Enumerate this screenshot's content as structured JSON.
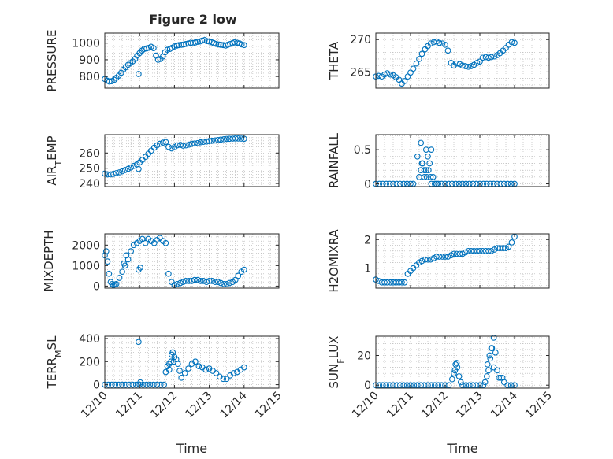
{
  "figure": {
    "title": "Figure 2 low",
    "colors": {
      "marker": "#0072BD",
      "axis": "#262626",
      "grid": "#b0b0b0",
      "background": "#ffffff"
    }
  },
  "chart_data": [
    {
      "id": "pressure",
      "type": "scatter",
      "ylabel": "PRESSURE",
      "xlabel": "",
      "xlim": [
        0,
        5
      ],
      "ylim": [
        730,
        1060
      ],
      "yticks": [
        800,
        900,
        1000
      ],
      "ytick_labels": [
        "800",
        "900",
        "1000"
      ],
      "xticks": [
        0,
        1,
        2,
        3,
        4,
        5
      ],
      "xtick_labels": [
        "12/10",
        "12/11",
        "12/12",
        "12/13",
        "12/14",
        "12/15"
      ],
      "x": [
        0.0,
        0.07,
        0.13,
        0.2,
        0.27,
        0.33,
        0.4,
        0.47,
        0.53,
        0.6,
        0.67,
        0.73,
        0.8,
        0.87,
        0.93,
        1.0,
        1.07,
        1.13,
        1.2,
        1.27,
        1.33,
        1.4,
        1.47,
        1.53,
        1.6,
        1.67,
        1.73,
        1.8,
        1.87,
        1.93,
        2.0,
        2.07,
        2.13,
        2.2,
        2.27,
        2.33,
        2.4,
        2.47,
        2.53,
        2.6,
        2.67,
        2.73,
        2.8,
        2.87,
        2.93,
        3.0,
        3.07,
        3.13,
        3.2,
        3.27,
        3.33,
        3.4,
        3.47,
        3.53,
        3.6,
        3.67,
        3.73,
        3.8,
        3.87,
        3.93,
        4.0,
        0.97
      ],
      "y": [
        785,
        775,
        770,
        772,
        780,
        792,
        805,
        822,
        840,
        855,
        870,
        880,
        890,
        905,
        925,
        940,
        955,
        965,
        968,
        972,
        978,
        970,
        925,
        900,
        905,
        920,
        945,
        960,
        965,
        972,
        980,
        985,
        988,
        990,
        992,
        995,
        998,
        1002,
        1000,
        1004,
        1008,
        1010,
        1015,
        1018,
        1012,
        1010,
        1005,
        1000,
        995,
        992,
        990,
        988,
        985,
        990,
        995,
        1000,
        1005,
        1002,
        998,
        992,
        988,
        815
      ]
    },
    {
      "id": "theta",
      "type": "scatter",
      "ylabel": "THETA",
      "xlabel": "",
      "xlim": [
        0,
        5
      ],
      "ylim": [
        262.5,
        271
      ],
      "yticks": [
        265,
        270
      ],
      "ytick_labels": [
        "265",
        "270"
      ],
      "xticks": [
        0,
        1,
        2,
        3,
        4,
        5
      ],
      "xtick_labels": [
        "12/10",
        "12/11",
        "12/12",
        "12/13",
        "12/14",
        "12/15"
      ],
      "x": [
        0.0,
        0.08,
        0.17,
        0.25,
        0.33,
        0.42,
        0.5,
        0.58,
        0.67,
        0.75,
        0.83,
        0.92,
        1.0,
        1.08,
        1.17,
        1.25,
        1.33,
        1.42,
        1.5,
        1.58,
        1.67,
        1.75,
        1.83,
        1.92,
        2.0,
        2.08,
        2.17,
        2.25,
        2.33,
        2.42,
        2.5,
        2.58,
        2.67,
        2.75,
        2.83,
        2.92,
        3.0,
        3.08,
        3.17,
        3.25,
        3.33,
        3.42,
        3.5,
        3.58,
        3.67,
        3.75,
        3.83,
        3.92,
        4.0
      ],
      "y": [
        264.3,
        264.4,
        264.3,
        264.6,
        264.8,
        264.6,
        264.5,
        264.2,
        263.8,
        263.2,
        263.6,
        264.3,
        264.9,
        265.5,
        266.3,
        267.0,
        267.8,
        268.5,
        269.0,
        269.4,
        269.6,
        269.7,
        269.5,
        269.4,
        269.2,
        268.3,
        266.4,
        266.0,
        266.3,
        266.2,
        266.0,
        265.9,
        265.8,
        265.9,
        266.1,
        266.4,
        266.6,
        267.2,
        267.3,
        267.2,
        267.3,
        267.4,
        267.6,
        267.9,
        268.3,
        268.7,
        269.2,
        269.6,
        269.5
      ]
    },
    {
      "id": "air_temp",
      "type": "scatter",
      "ylabel": "AIR_TEMP",
      "xlabel": "",
      "xlim": [
        0,
        5
      ],
      "ylim": [
        238,
        272
      ],
      "yticks": [
        240,
        250,
        260
      ],
      "ytick_labels": [
        "240",
        "250",
        "260"
      ],
      "xticks": [
        0,
        1,
        2,
        3,
        4,
        5
      ],
      "xtick_labels": [
        "12/10",
        "12/11",
        "12/12",
        "12/13",
        "12/14",
        "12/15"
      ],
      "x": [
        0.0,
        0.08,
        0.17,
        0.25,
        0.33,
        0.42,
        0.5,
        0.58,
        0.67,
        0.75,
        0.83,
        0.92,
        1.0,
        1.08,
        1.17,
        1.25,
        1.33,
        1.42,
        1.5,
        1.58,
        1.67,
        1.75,
        1.83,
        1.92,
        2.0,
        2.08,
        2.17,
        2.25,
        2.33,
        2.42,
        2.5,
        2.58,
        2.67,
        2.75,
        2.83,
        2.92,
        3.0,
        3.08,
        3.17,
        3.25,
        3.33,
        3.42,
        3.5,
        3.58,
        3.67,
        3.75,
        3.83,
        3.92,
        4.0,
        0.97
      ],
      "y": [
        246.5,
        246.0,
        246.0,
        246.3,
        246.8,
        247.3,
        248.0,
        248.8,
        249.6,
        250.5,
        251.5,
        252.5,
        253.8,
        255.5,
        257.5,
        259.5,
        261.5,
        263.5,
        265.0,
        266.0,
        266.8,
        267.2,
        264.0,
        263.0,
        263.8,
        265.0,
        265.3,
        264.8,
        265.0,
        265.5,
        266.0,
        266.2,
        266.5,
        267.0,
        267.3,
        267.5,
        267.8,
        268.0,
        268.2,
        268.5,
        268.7,
        269.0,
        269.2,
        269.3,
        269.4,
        269.5,
        269.5,
        269.4,
        269.3,
        249.5
      ]
    },
    {
      "id": "rainfall",
      "type": "scatter",
      "ylabel": "RAINFALL",
      "xlabel": "",
      "xlim": [
        0,
        5
      ],
      "ylim": [
        -0.04,
        0.72
      ],
      "yticks": [
        0,
        0.5
      ],
      "ytick_labels": [
        "0",
        "0.5"
      ],
      "xticks": [
        0,
        1,
        2,
        3,
        4,
        5
      ],
      "xtick_labels": [
        "12/10",
        "12/11",
        "12/12",
        "12/13",
        "12/14",
        "12/15"
      ],
      "x": [
        0.0,
        0.1,
        0.2,
        0.3,
        0.4,
        0.5,
        0.6,
        0.7,
        0.8,
        0.9,
        1.0,
        1.08,
        1.2,
        1.25,
        1.3,
        1.35,
        1.4,
        1.45,
        1.5,
        1.55,
        1.6,
        1.65,
        1.7,
        1.75,
        1.8,
        1.9,
        2.0,
        2.1,
        2.2,
        2.3,
        2.4,
        2.5,
        2.6,
        2.7,
        2.8,
        2.9,
        3.0,
        3.1,
        3.2,
        3.3,
        3.4,
        3.5,
        3.6,
        3.7,
        3.8,
        3.9,
        4.0,
        1.3,
        1.33,
        1.4,
        1.45,
        1.47,
        1.52,
        1.58,
        1.6
      ],
      "y": [
        0,
        0,
        0,
        0,
        0,
        0,
        0,
        0,
        0,
        0,
        0,
        0,
        0.4,
        0.1,
        0.6,
        0.3,
        0.2,
        0.5,
        0.4,
        0.3,
        0.5,
        0.1,
        0,
        0,
        0,
        0,
        0,
        0,
        0,
        0,
        0,
        0,
        0,
        0,
        0,
        0,
        0,
        0,
        0,
        0,
        0,
        0,
        0,
        0,
        0,
        0,
        0,
        0.2,
        0.3,
        0.1,
        0.2,
        0.1,
        0.2,
        0.1,
        0
      ]
    },
    {
      "id": "mixdepth",
      "type": "scatter",
      "ylabel": "MIXDEPTH",
      "xlabel": "",
      "xlim": [
        0,
        5
      ],
      "ylim": [
        -100,
        2550
      ],
      "yticks": [
        0,
        1000,
        2000
      ],
      "ytick_labels": [
        "0",
        "1000",
        "2000"
      ],
      "xticks": [
        0,
        1,
        2,
        3,
        4,
        5
      ],
      "xtick_labels": [
        "12/10",
        "12/11",
        "12/12",
        "12/13",
        "12/14",
        "12/15"
      ],
      "x": [
        0.0,
        0.04,
        0.08,
        0.12,
        0.17,
        0.21,
        0.25,
        0.29,
        0.33,
        0.42,
        0.5,
        0.58,
        0.67,
        0.75,
        0.83,
        0.92,
        1.0,
        1.08,
        1.17,
        1.25,
        1.33,
        1.42,
        1.5,
        1.58,
        1.67,
        1.75,
        1.83,
        1.92,
        2.0,
        2.08,
        2.17,
        2.25,
        2.33,
        2.42,
        2.5,
        2.58,
        2.67,
        2.75,
        2.83,
        2.92,
        3.0,
        3.08,
        3.17,
        3.25,
        3.33,
        3.42,
        3.5,
        3.58,
        3.67,
        3.75,
        3.83,
        3.92,
        4.0,
        0.97,
        1.02,
        0.55,
        0.62
      ],
      "y": [
        1500,
        1700,
        1200,
        600,
        200,
        100,
        50,
        80,
        100,
        400,
        700,
        1000,
        1300,
        1700,
        2000,
        2100,
        2200,
        2300,
        2100,
        2300,
        2200,
        2100,
        2250,
        2350,
        2200,
        2100,
        600,
        200,
        50,
        100,
        150,
        200,
        250,
        250,
        250,
        300,
        300,
        250,
        250,
        200,
        250,
        250,
        200,
        200,
        150,
        100,
        100,
        150,
        200,
        300,
        500,
        700,
        800,
        800,
        900,
        1100,
        1500
      ]
    },
    {
      "id": "h2omixra",
      "type": "scatter",
      "ylabel": "H2OMIXRA",
      "xlabel": "",
      "xlim": [
        0,
        5
      ],
      "ylim": [
        0.3,
        2.2
      ],
      "yticks": [
        1,
        2
      ],
      "ytick_labels": [
        "1",
        "2"
      ],
      "xticks": [
        0,
        1,
        2,
        3,
        4,
        5
      ],
      "xtick_labels": [
        "12/10",
        "12/11",
        "12/12",
        "12/13",
        "12/14",
        "12/15"
      ],
      "x": [
        0.0,
        0.08,
        0.17,
        0.25,
        0.33,
        0.42,
        0.5,
        0.58,
        0.67,
        0.75,
        0.83,
        0.92,
        1.0,
        1.08,
        1.17,
        1.25,
        1.33,
        1.42,
        1.5,
        1.58,
        1.67,
        1.75,
        1.83,
        1.92,
        2.0,
        2.08,
        2.17,
        2.25,
        2.33,
        2.42,
        2.5,
        2.58,
        2.67,
        2.75,
        2.83,
        2.92,
        3.0,
        3.08,
        3.17,
        3.25,
        3.33,
        3.42,
        3.5,
        3.58,
        3.67,
        3.75,
        3.83,
        3.92,
        4.0
      ],
      "y": [
        0.6,
        0.55,
        0.5,
        0.5,
        0.5,
        0.5,
        0.5,
        0.5,
        0.5,
        0.5,
        0.5,
        0.8,
        0.9,
        1.0,
        1.1,
        1.2,
        1.25,
        1.3,
        1.3,
        1.3,
        1.35,
        1.4,
        1.4,
        1.4,
        1.4,
        1.4,
        1.45,
        1.5,
        1.5,
        1.5,
        1.5,
        1.55,
        1.6,
        1.6,
        1.6,
        1.6,
        1.6,
        1.6,
        1.6,
        1.6,
        1.6,
        1.65,
        1.7,
        1.7,
        1.7,
        1.7,
        1.75,
        1.9,
        2.1
      ]
    },
    {
      "id": "terr_msl",
      "type": "scatter",
      "ylabel": "TERR_MSL",
      "xlabel": "Time",
      "xlim": [
        0,
        5
      ],
      "ylim": [
        -30,
        420
      ],
      "yticks": [
        0,
        200,
        400
      ],
      "ytick_labels": [
        "0",
        "200",
        "400"
      ],
      "xticks": [
        0,
        1,
        2,
        3,
        4,
        5
      ],
      "xtick_labels": [
        "12/10",
        "12/11",
        "12/12",
        "12/13",
        "12/14",
        "12/15"
      ],
      "x": [
        0.0,
        0.1,
        0.2,
        0.3,
        0.4,
        0.5,
        0.6,
        0.7,
        0.8,
        0.9,
        1.0,
        1.1,
        1.2,
        1.3,
        1.4,
        1.5,
        1.6,
        1.7,
        1.75,
        1.8,
        1.85,
        1.9,
        1.95,
        2.0,
        2.05,
        2.1,
        2.15,
        2.2,
        2.3,
        2.4,
        2.5,
        2.6,
        2.7,
        2.8,
        2.9,
        3.0,
        3.1,
        3.2,
        3.3,
        3.4,
        3.5,
        3.6,
        3.7,
        3.8,
        3.9,
        4.0,
        0.97,
        1.02,
        1.85,
        1.92,
        1.98
      ],
      "y": [
        0,
        0,
        0,
        0,
        0,
        0,
        0,
        0,
        0,
        0,
        0,
        0,
        0,
        0,
        0,
        0,
        0,
        0,
        110,
        160,
        180,
        200,
        280,
        240,
        220,
        180,
        120,
        60,
        100,
        140,
        180,
        200,
        160,
        150,
        130,
        140,
        120,
        100,
        70,
        50,
        50,
        80,
        100,
        110,
        130,
        150,
        370,
        20,
        130,
        260,
        200
      ]
    },
    {
      "id": "sun_flux",
      "type": "scatter",
      "ylabel": "SUN_FLUX",
      "xlabel": "Time",
      "xlim": [
        0,
        5
      ],
      "ylim": [
        -2,
        33
      ],
      "yticks": [
        0,
        20
      ],
      "ytick_labels": [
        "0",
        "20"
      ],
      "xticks": [
        0,
        1,
        2,
        3,
        4,
        5
      ],
      "xtick_labels": [
        "12/10",
        "12/11",
        "12/12",
        "12/13",
        "12/14",
        "12/15"
      ],
      "x": [
        0.0,
        0.1,
        0.2,
        0.3,
        0.4,
        0.5,
        0.6,
        0.7,
        0.8,
        0.9,
        1.0,
        1.1,
        1.2,
        1.3,
        1.4,
        1.5,
        1.6,
        1.7,
        1.8,
        1.9,
        2.0,
        2.1,
        2.2,
        2.25,
        2.3,
        2.35,
        2.4,
        2.45,
        2.5,
        2.6,
        2.7,
        2.8,
        2.9,
        3.0,
        3.1,
        3.15,
        3.2,
        3.25,
        3.3,
        3.35,
        3.4,
        3.45,
        3.5,
        3.55,
        3.6,
        3.65,
        3.7,
        3.8,
        3.9,
        4.0,
        2.28,
        2.33,
        3.22,
        3.28,
        3.33,
        3.4
      ],
      "y": [
        0,
        0,
        0,
        0,
        0,
        0,
        0,
        0,
        0,
        0,
        0,
        0,
        0,
        0,
        0,
        0,
        0,
        0,
        0,
        0,
        0,
        0,
        4,
        8,
        14,
        12,
        6,
        2,
        0,
        0,
        0,
        0,
        0,
        0,
        0,
        2,
        6,
        10,
        18,
        25,
        32,
        22,
        10,
        5,
        5,
        5,
        2,
        0,
        0,
        0,
        10,
        15,
        14,
        20,
        25,
        12
      ]
    }
  ]
}
